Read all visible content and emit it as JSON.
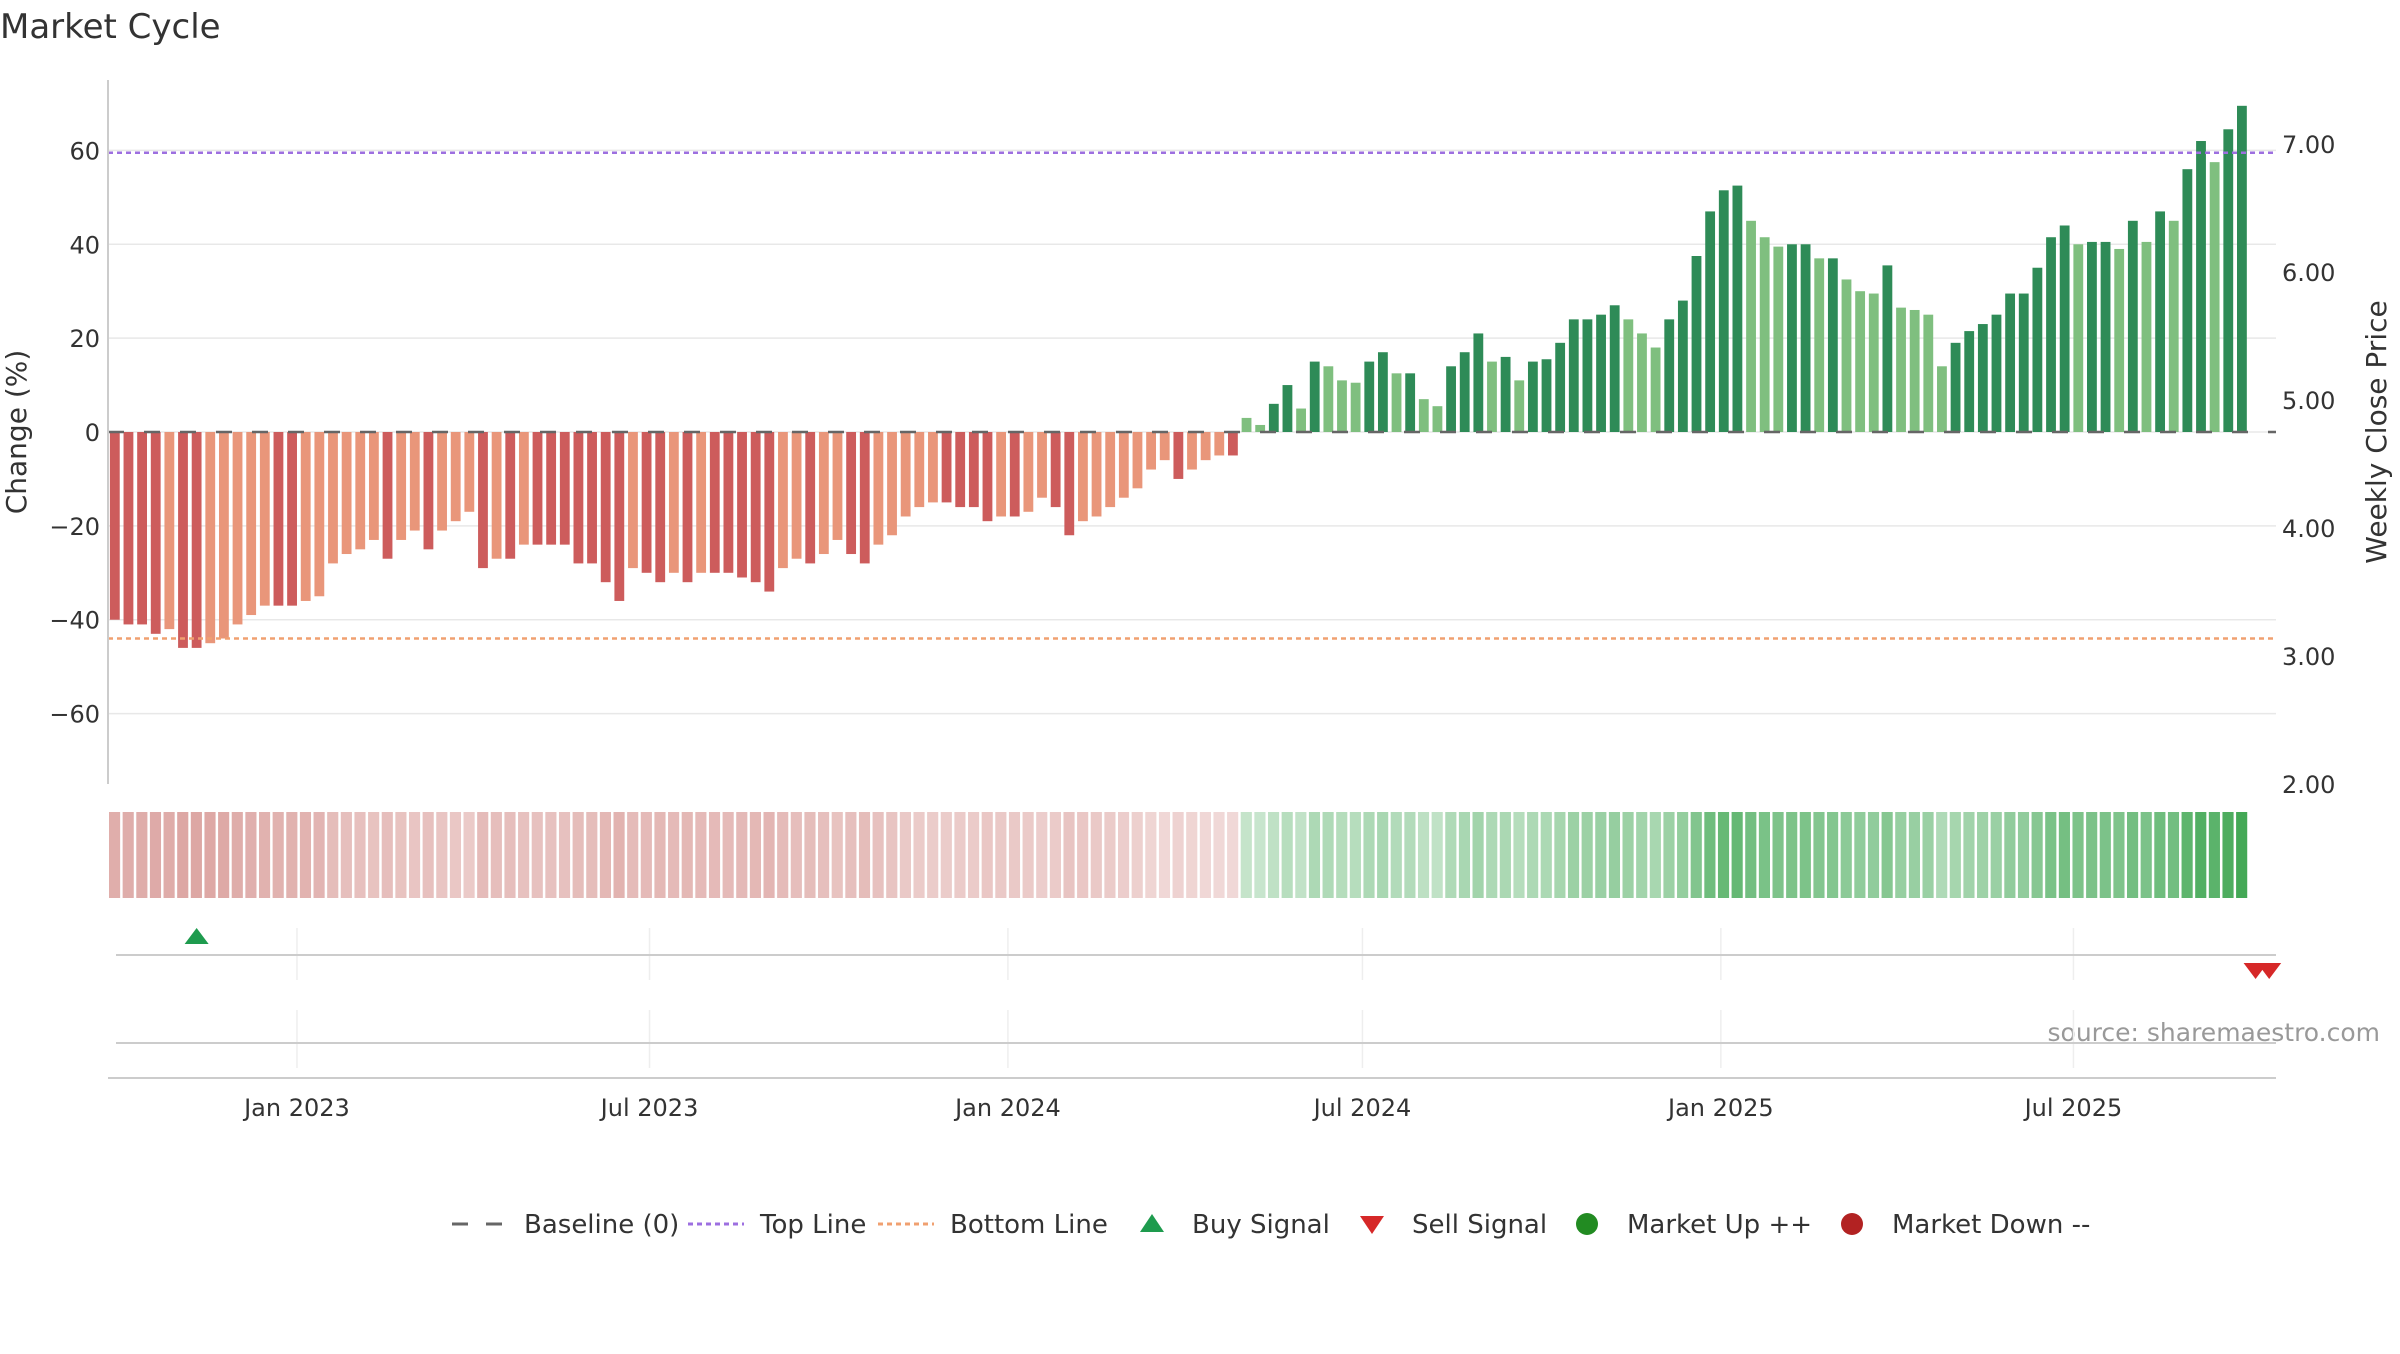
{
  "chart_data": {
    "type": "bar",
    "title": "Market Cycle",
    "ylabel_left": "Change (%)",
    "ylabel_right": "Weekly Close Price",
    "source": "source: sharemaestro.com",
    "ylim_left": [
      -75,
      75
    ],
    "ylim_right": [
      2.0,
      7.5
    ],
    "yticks_left": [
      -60,
      -40,
      -20,
      0,
      20,
      40,
      60
    ],
    "yticks_left_labels": [
      "−60",
      "−40",
      "−20",
      "0",
      "20",
      "40",
      "60"
    ],
    "yticks_right": [
      2.0,
      3.0,
      4.0,
      5.0,
      6.0,
      7.0
    ],
    "yticks_right_labels": [
      "2.00",
      "3.00",
      "4.00",
      "5.00",
      "6.00",
      "7.00"
    ],
    "x_start": "2022-09-26",
    "x_end": "2025-10-13",
    "x_ticks": [
      {
        "date": "2023-01-01",
        "label": "Jan 2023"
      },
      {
        "date": "2023-07-01",
        "label": "Jul 2023"
      },
      {
        "date": "2024-01-01",
        "label": "Jan 2024"
      },
      {
        "date": "2024-07-01",
        "label": "Jul 2024"
      },
      {
        "date": "2025-01-01",
        "label": "Jan 2025"
      },
      {
        "date": "2025-07-01",
        "label": "Jul 2025"
      }
    ],
    "top_line": 59.5,
    "bottom_line": -44,
    "baseline": 0,
    "weeks_start": "2022-09-26",
    "series": [
      {
        "name": "Change (%)",
        "values": [
          -40,
          -41,
          -41,
          -43,
          -42,
          -46,
          -46,
          -45,
          -44,
          -41,
          -39,
          -37,
          -37,
          -37,
          -36,
          -35,
          -28,
          -26,
          -25,
          -23,
          -27,
          -23,
          -21,
          -25,
          -21,
          -19,
          -17,
          -29,
          -27,
          -27,
          -24,
          -24,
          -24,
          -24,
          -28,
          -28,
          -32,
          -36,
          -29,
          -30,
          -32,
          -30,
          -32,
          -30,
          -30,
          -30,
          -31,
          -32,
          -34,
          -29,
          -27,
          -28,
          -26,
          -23,
          -26,
          -28,
          -24,
          -22,
          -18,
          -16,
          -15,
          -15,
          -16,
          -16,
          -19,
          -18,
          -18,
          -17,
          -14,
          -16,
          -22,
          -19,
          -18,
          -16,
          -14,
          -12,
          -8,
          -6,
          -10,
          -8,
          -6,
          -5,
          -5,
          3,
          1.5,
          6,
          10,
          5,
          15,
          14,
          11,
          10.5,
          15,
          17,
          12.5,
          12.5,
          7,
          5.5,
          14,
          17,
          21,
          15,
          16,
          11,
          15,
          15.5,
          19,
          24,
          24,
          25,
          27,
          24,
          21,
          18,
          24,
          28,
          37.5,
          47,
          51.5,
          52.5,
          45,
          41.5,
          39.5,
          40,
          40,
          37,
          37,
          32.5,
          30,
          29.5,
          35.5,
          26.5,
          26,
          25,
          14,
          19,
          21.5,
          23,
          25,
          29.5,
          29.5,
          35,
          41.5,
          44,
          40,
          40.5,
          40.5,
          39,
          45,
          40.5,
          47,
          45,
          56,
          62,
          57.5,
          64.5,
          69.5
        ]
      },
      {
        "name": "Weekly Close Price",
        "values": []
      }
    ],
    "legend": [
      {
        "label": "Baseline (0)",
        "symbol": "dash",
        "color": "#666666"
      },
      {
        "label": "Top Line",
        "symbol": "dotted",
        "color": "#9d6fe0"
      },
      {
        "label": "Bottom Line",
        "symbol": "dotted",
        "color": "#f0a070"
      },
      {
        "label": "Buy Signal",
        "symbol": "triangle-up",
        "color": "#1e9b4e"
      },
      {
        "label": "Sell Signal",
        "symbol": "triangle-down",
        "color": "#d62828"
      },
      {
        "label": "Market Up ++",
        "symbol": "circle",
        "color": "#228b22"
      },
      {
        "label": "Market Down --",
        "symbol": "circle",
        "color": "#b22222"
      }
    ],
    "legend_position": "bottom",
    "signals": {
      "buy": [
        "2022-11-07"
      ],
      "sell": [
        "2025-09-29",
        "2025-10-06"
      ]
    },
    "colors": {
      "up_dark": "#2e8b57",
      "up_light": "#7fbf7f",
      "down_dark": "#cd5c5c",
      "down_light": "#e9967a",
      "heat_down": "#d28a86",
      "heat_up": "#43a855"
    }
  }
}
